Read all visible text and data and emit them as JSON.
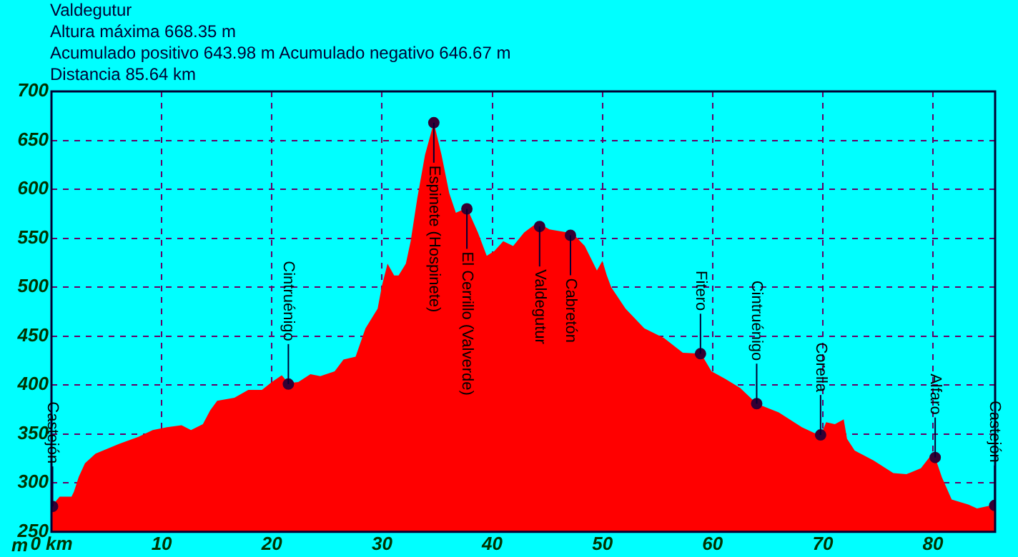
{
  "chart_data": {
    "type": "area",
    "title": "Valdegutur",
    "ylabel": "m",
    "annotations": [
      "Altura máxima 668.35 m",
      "Acumulado positivo 643.98 m Acumulado negativo 646.67 m",
      "Distancia 85.64 km",
      {
        "text": "Castejón",
        "x": 0.1,
        "y": 276
      },
      {
        "text": "Cintruénigo",
        "x": 21.5,
        "y": 401
      },
      {
        "text": "Espinete (Hospinete)",
        "x": 34.7,
        "y": 668
      },
      {
        "text": "El Cerrillo (Valverde)",
        "x": 37.7,
        "y": 580
      },
      {
        "text": "Valdegutur",
        "x": 44.3,
        "y": 562
      },
      {
        "text": "Cabretón",
        "x": 47.1,
        "y": 553
      },
      {
        "text": "Fitero",
        "x": 58.9,
        "y": 432
      },
      {
        "text": "Cintruénigo",
        "x": 64.0,
        "y": 381
      },
      {
        "text": "Corella",
        "x": 69.8,
        "y": 349
      },
      {
        "text": "Alfaro",
        "x": 80.2,
        "y": 326
      },
      {
        "text": "Castejón",
        "x": 85.6,
        "y": 277
      }
    ],
    "xlim": [
      0,
      85.64
    ],
    "ylim": [
      250,
      700
    ],
    "xticks": [
      {
        "value": 0,
        "label": "0 km"
      },
      10,
      20,
      30,
      40,
      50,
      60,
      70,
      80
    ],
    "yticks": [
      250,
      300,
      350,
      400,
      450,
      500,
      550,
      600,
      650,
      700
    ],
    "grid": true,
    "series": [
      {
        "type": "area",
        "color": "#ff0000",
        "x": [
          0,
          0.74,
          1.82,
          2.04,
          2.47,
          3.04,
          4.0,
          6.15,
          7.89,
          9.19,
          10.49,
          11.8,
          12.66,
          13.74,
          14.4,
          15.04,
          16.6,
          17.86,
          19.1,
          20.0,
          20.9,
          21.5,
          22.4,
          23.5,
          24.4,
          25.7,
          26.5,
          27.6,
          28.5,
          29.6,
          30.0,
          30.5,
          31.1,
          31.5,
          32.16,
          32.6,
          33.2,
          33.9,
          34.7,
          35.4,
          36.1,
          36.7,
          37.7,
          38.7,
          39.5,
          40.2,
          41.0,
          41.9,
          42.9,
          44.1,
          45.2,
          47.3,
          48.4,
          49.5,
          50.0,
          50.4,
          50.8,
          52.1,
          53.8,
          55.6,
          57.3,
          58.95,
          59.9,
          61.2,
          62.5,
          64.0,
          66.0,
          68.1,
          69.8,
          70.3,
          71.1,
          71.9,
          72.2,
          72.9,
          74.6,
          76.4,
          77.6,
          78.9,
          79.8,
          80.2,
          80.8,
          81.7,
          83.2,
          84.0,
          85.64
        ],
        "values": [
          276,
          286,
          286,
          291,
          306,
          320,
          330,
          340,
          347,
          354,
          357,
          359,
          354,
          360,
          374,
          384,
          387,
          395,
          395,
          403,
          410,
          402,
          403,
          411,
          409,
          414,
          426,
          429,
          458,
          478,
          502,
          524,
          512,
          512,
          524,
          547,
          591,
          635,
          668,
          635,
          596,
          576,
          581,
          556,
          532,
          537,
          547,
          542,
          556,
          566,
          559,
          555,
          542,
          517,
          527,
          512,
          500,
          478,
          458,
          448,
          433,
          432,
          414,
          406,
          397,
          381,
          372,
          357,
          348,
          362,
          360,
          365,
          345,
          333,
          323,
          310,
          309,
          315,
          328,
          326,
          306,
          283,
          278,
          274,
          278
        ]
      },
      {
        "type": "scatter",
        "color": "#330033",
        "marker": "circle",
        "x": [
          0.1,
          21.5,
          34.7,
          37.7,
          44.3,
          47.1,
          58.9,
          64.0,
          69.8,
          80.2,
          85.6
        ],
        "values": [
          276,
          401,
          668,
          580,
          562,
          553,
          432,
          381,
          349,
          326,
          277
        ]
      }
    ]
  }
}
